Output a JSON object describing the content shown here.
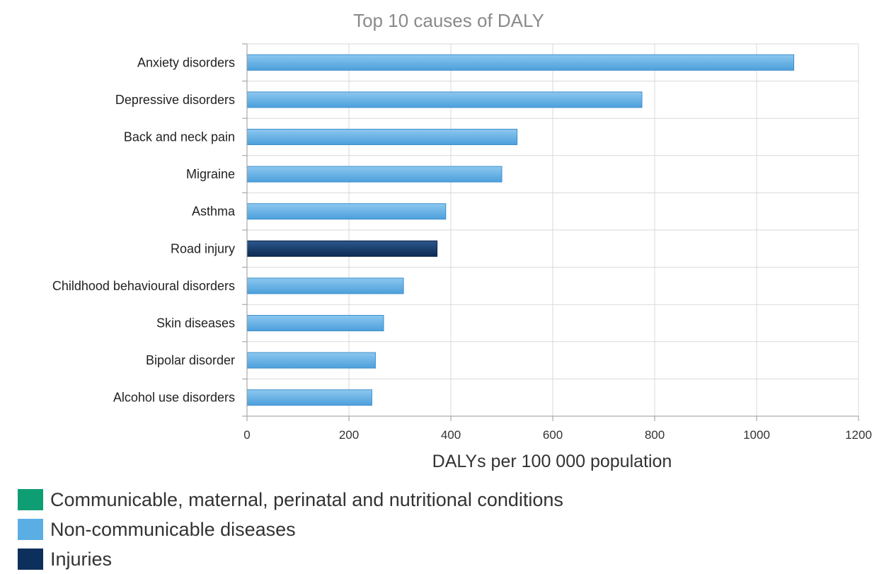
{
  "chart_data": {
    "type": "bar",
    "orientation": "horizontal",
    "title": "Top 10 causes of DALY",
    "xlabel": "DALYs per 100 000 population",
    "ylabel": "",
    "xlim": [
      0,
      1200
    ],
    "xticks": [
      0,
      200,
      400,
      600,
      800,
      1000,
      1200
    ],
    "grid": true,
    "legend_position": "bottom-left",
    "categories": [
      "Anxiety disorders",
      "Depressive disorders",
      "Back and neck pain",
      "Migraine",
      "Asthma",
      "Road injury",
      "Childhood behavioural disorders",
      "Skin diseases",
      "Bipolar disorder",
      "Alcohol use disorders"
    ],
    "values": [
      1073,
      775,
      530,
      500,
      390,
      373,
      307,
      268,
      252,
      245
    ],
    "groups": [
      "Non-communicable diseases",
      "Non-communicable diseases",
      "Non-communicable diseases",
      "Non-communicable diseases",
      "Non-communicable diseases",
      "Injuries",
      "Non-communicable diseases",
      "Non-communicable diseases",
      "Non-communicable diseases",
      "Non-communicable diseases"
    ]
  },
  "legend": [
    {
      "label": "Communicable, maternal, perinatal and nutritional conditions",
      "color": "#0f9e74"
    },
    {
      "label": "Non-communicable diseases",
      "color": "#5baee4"
    },
    {
      "label": "Injuries",
      "color": "#0d2f5c"
    }
  ]
}
